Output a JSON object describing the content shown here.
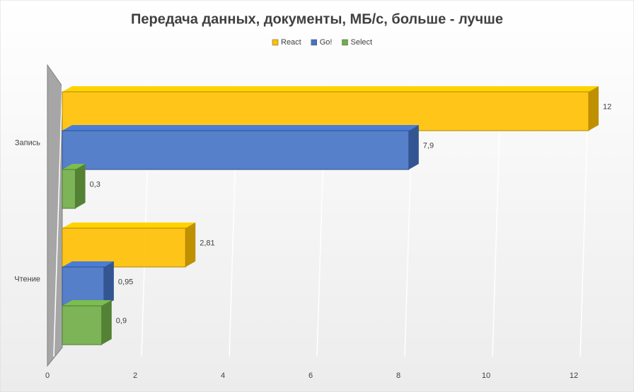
{
  "chart_data": {
    "type": "bar3d_horizontal",
    "title": "Передача данных, документы, МБ/с, больше - лучше",
    "categories": [
      "Запись",
      "Чтение"
    ],
    "series": [
      {
        "name": "React",
        "color": "#ffc000",
        "values": [
          12,
          2.81
        ],
        "value_labels": [
          "12",
          "2,81"
        ]
      },
      {
        "name": "Go!",
        "color": "#4472c4",
        "values": [
          7.9,
          0.95
        ],
        "value_labels": [
          "7,9",
          "0,95"
        ]
      },
      {
        "name": "Select",
        "color": "#70ad47",
        "values": [
          0.3,
          0.9
        ],
        "value_labels": [
          "0,3",
          "0,9"
        ]
      }
    ],
    "xlim": [
      0,
      12
    ],
    "xticks": [
      0,
      2,
      4,
      6,
      8,
      10,
      12
    ],
    "grid": true,
    "legend": "top"
  }
}
